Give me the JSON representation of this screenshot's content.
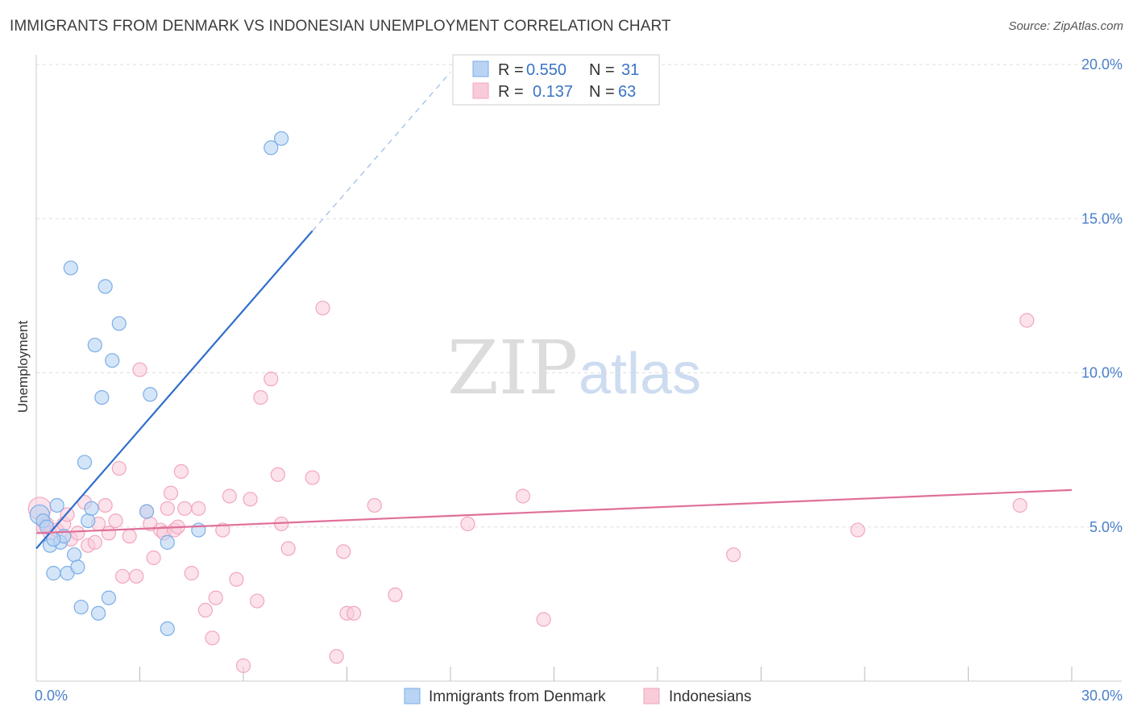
{
  "title": "IMMIGRANTS FROM DENMARK VS INDONESIAN UNEMPLOYMENT CORRELATION CHART",
  "source": "Source: ZipAtlas.com",
  "watermark": {
    "zip": "ZIP",
    "atlas": "atlas"
  },
  "colors": {
    "blue": "#7aaee8",
    "blue_line": "#2f6fcb",
    "pink": "#f2a6bf",
    "pink_line": "#e06f9a",
    "tick": "#4a7fc9"
  },
  "legend": {
    "r_label": "R =",
    "n_label": "N =",
    "rows": [
      {
        "r": "0.550",
        "n": "31"
      },
      {
        "r": "0.137",
        "n": "63"
      }
    ]
  },
  "bottom_legend": [
    "Immigrants from Denmark",
    "Indonesians"
  ],
  "chart_data": {
    "type": "scatter",
    "xlabel": "",
    "ylabel": "Unemployment",
    "xlim": [
      0,
      30
    ],
    "ylim": [
      0,
      20
    ],
    "x_tick_labels": [
      "0.0%",
      "30.0%"
    ],
    "y_ticks": [
      5,
      10,
      15,
      20
    ],
    "y_tick_labels": [
      "5.0%",
      "10.0%",
      "15.0%",
      "20.0%"
    ],
    "grid": true,
    "series": [
      {
        "name": "Immigrants from Denmark",
        "R": 0.55,
        "N": 31,
        "trend": {
          "x0": 0,
          "y0": 4.3,
          "x1": 8.0,
          "y1": 14.6,
          "dash_to_x": 12.0
        },
        "points": [
          [
            0.1,
            5.4
          ],
          [
            0.2,
            5.2
          ],
          [
            0.3,
            5.0
          ],
          [
            0.4,
            4.4
          ],
          [
            0.6,
            5.7
          ],
          [
            0.7,
            4.5
          ],
          [
            0.8,
            4.7
          ],
          [
            0.5,
            3.5
          ],
          [
            0.9,
            3.5
          ],
          [
            1.1,
            4.1
          ],
          [
            1.2,
            3.7
          ],
          [
            1.3,
            2.4
          ],
          [
            1.4,
            7.1
          ],
          [
            1.5,
            5.2
          ],
          [
            1.6,
            5.6
          ],
          [
            1.8,
            2.2
          ],
          [
            2.1,
            2.7
          ],
          [
            1.0,
            13.4
          ],
          [
            2.0,
            12.8
          ],
          [
            1.7,
            10.9
          ],
          [
            2.4,
            11.6
          ],
          [
            2.2,
            10.4
          ],
          [
            1.9,
            9.2
          ],
          [
            3.2,
            5.5
          ],
          [
            3.3,
            9.3
          ],
          [
            3.8,
            4.5
          ],
          [
            4.7,
            4.9
          ],
          [
            3.8,
            1.7
          ],
          [
            6.8,
            17.3
          ],
          [
            7.1,
            17.6
          ],
          [
            0.5,
            4.6
          ]
        ]
      },
      {
        "name": "Indonesians",
        "R": 0.137,
        "N": 63,
        "trend": {
          "x0": 0,
          "y0": 4.8,
          "x1": 30,
          "y1": 6.2
        },
        "points": [
          [
            0.1,
            5.6
          ],
          [
            0.2,
            5.0
          ],
          [
            0.3,
            5.1
          ],
          [
            0.4,
            4.8
          ],
          [
            0.6,
            4.9
          ],
          [
            0.8,
            5.1
          ],
          [
            0.9,
            5.4
          ],
          [
            1.0,
            4.6
          ],
          [
            1.2,
            4.8
          ],
          [
            1.4,
            5.8
          ],
          [
            1.5,
            4.4
          ],
          [
            1.7,
            4.5
          ],
          [
            1.8,
            5.1
          ],
          [
            2.0,
            5.7
          ],
          [
            2.1,
            4.8
          ],
          [
            2.3,
            5.2
          ],
          [
            2.4,
            6.9
          ],
          [
            2.5,
            3.4
          ],
          [
            2.7,
            4.7
          ],
          [
            2.9,
            3.4
          ],
          [
            3.0,
            10.1
          ],
          [
            3.2,
            5.5
          ],
          [
            3.3,
            5.1
          ],
          [
            3.4,
            4.0
          ],
          [
            3.6,
            4.9
          ],
          [
            3.7,
            4.8
          ],
          [
            3.8,
            5.6
          ],
          [
            3.9,
            6.1
          ],
          [
            4.0,
            4.9
          ],
          [
            4.1,
            5.0
          ],
          [
            4.2,
            6.8
          ],
          [
            4.3,
            5.6
          ],
          [
            4.5,
            3.5
          ],
          [
            4.7,
            5.6
          ],
          [
            4.9,
            2.3
          ],
          [
            5.1,
            1.4
          ],
          [
            5.2,
            2.7
          ],
          [
            5.4,
            4.9
          ],
          [
            5.6,
            6.0
          ],
          [
            5.8,
            3.3
          ],
          [
            6.0,
            0.5
          ],
          [
            6.2,
            5.9
          ],
          [
            6.4,
            2.6
          ],
          [
            6.5,
            9.2
          ],
          [
            6.8,
            9.8
          ],
          [
            7.0,
            6.7
          ],
          [
            7.1,
            5.1
          ],
          [
            7.3,
            4.3
          ],
          [
            8.0,
            6.6
          ],
          [
            8.3,
            12.1
          ],
          [
            8.7,
            0.8
          ],
          [
            8.9,
            4.2
          ],
          [
            9.0,
            2.2
          ],
          [
            9.2,
            2.2
          ],
          [
            9.8,
            5.7
          ],
          [
            10.4,
            2.8
          ],
          [
            12.5,
            5.1
          ],
          [
            14.1,
            6.0
          ],
          [
            14.7,
            2.0
          ],
          [
            20.2,
            4.1
          ],
          [
            23.8,
            4.9
          ],
          [
            28.5,
            5.7
          ],
          [
            28.7,
            11.7
          ]
        ]
      }
    ]
  }
}
